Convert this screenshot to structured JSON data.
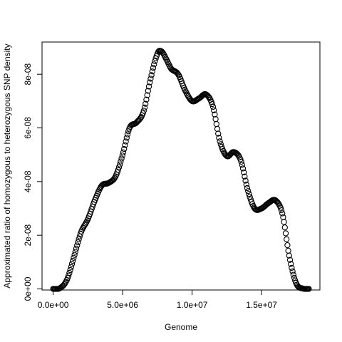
{
  "chart_data": {
    "type": "scatter",
    "title": "",
    "xlabel": "Genome",
    "ylabel": "Approximated ratio of homozygous to heterozygous SNP density",
    "xlim": [
      -800000,
      19200000
    ],
    "ylim": [
      -4e-10,
      9.2e-08
    ],
    "xticks": [
      0,
      5000000,
      10000000,
      15000000
    ],
    "xtick_labels": [
      "0.0e+00",
      "5.0e+06",
      "1.0e+07",
      "1.5e+07"
    ],
    "yticks": [
      0,
      2e-08,
      4e-08,
      6e-08,
      8e-08
    ],
    "ytick_labels": [
      "0e+00",
      "2e-08",
      "4e-08",
      "6e-08",
      "8e-08"
    ],
    "grid": false,
    "marker": "open-circle",
    "point_count": 300,
    "x_range": [
      0,
      18400000
    ],
    "curve_x": [
      0,
      500000,
      1000000,
      1500000,
      2000000,
      2500000,
      3000000,
      3500000,
      4000000,
      4500000,
      5000000,
      5500000,
      6000000,
      6500000,
      7000000,
      7500000,
      7800000,
      8100000,
      8500000,
      9000000,
      9500000,
      10000000,
      10500000,
      11000000,
      11500000,
      12000000,
      12500000,
      13000000,
      13500000,
      14000000,
      14500000,
      15000000,
      15500000,
      16000000,
      16500000,
      17000000,
      17500000,
      18000000,
      18400000
    ],
    "curve_y": [
      0,
      3e-10,
      3.5e-09,
      1.2e-08,
      2.1e-08,
      2.6e-08,
      3.3e-08,
      3.85e-08,
      3.95e-08,
      4.2e-08,
      5e-08,
      6e-08,
      6.2e-08,
      6.6e-08,
      7.8e-08,
      8.75e-08,
      8.85e-08,
      8.6e-08,
      8.2e-08,
      8e-08,
      7.4e-08,
      7e-08,
      7.1e-08,
      7.25e-08,
      6.8e-08,
      5.5e-08,
      4.95e-08,
      5.1e-08,
      4.8e-08,
      3.7e-08,
      3e-08,
      3e-08,
      3.2e-08,
      3.3e-08,
      2.8e-08,
      1.2e-08,
      2e-09,
      1e-10,
      0
    ]
  }
}
